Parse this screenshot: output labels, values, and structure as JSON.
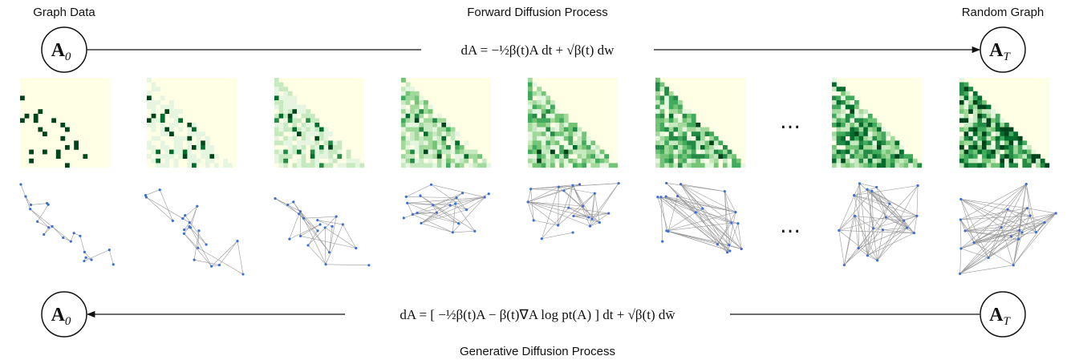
{
  "header": {
    "left_label": "Graph Data",
    "forward_title": "Forward Diffusion Process",
    "right_label": "Random Graph",
    "generative_title": "Generative Diffusion Process"
  },
  "nodes": [
    {
      "base": "A",
      "sub": "0"
    },
    {
      "base": "A",
      "sub": "T"
    },
    {
      "base": "A",
      "sub": "0"
    },
    {
      "base": "A",
      "sub": "T"
    }
  ],
  "equations": {
    "forward": "dA = −½β(t)A dt + √β(t) dw",
    "reverse": "dA = [ −½β(t)A − β(t)∇A log pt(A) ] dt + √β(t) dw̄"
  },
  "ellipsis": [
    "…",
    "…"
  ]
}
